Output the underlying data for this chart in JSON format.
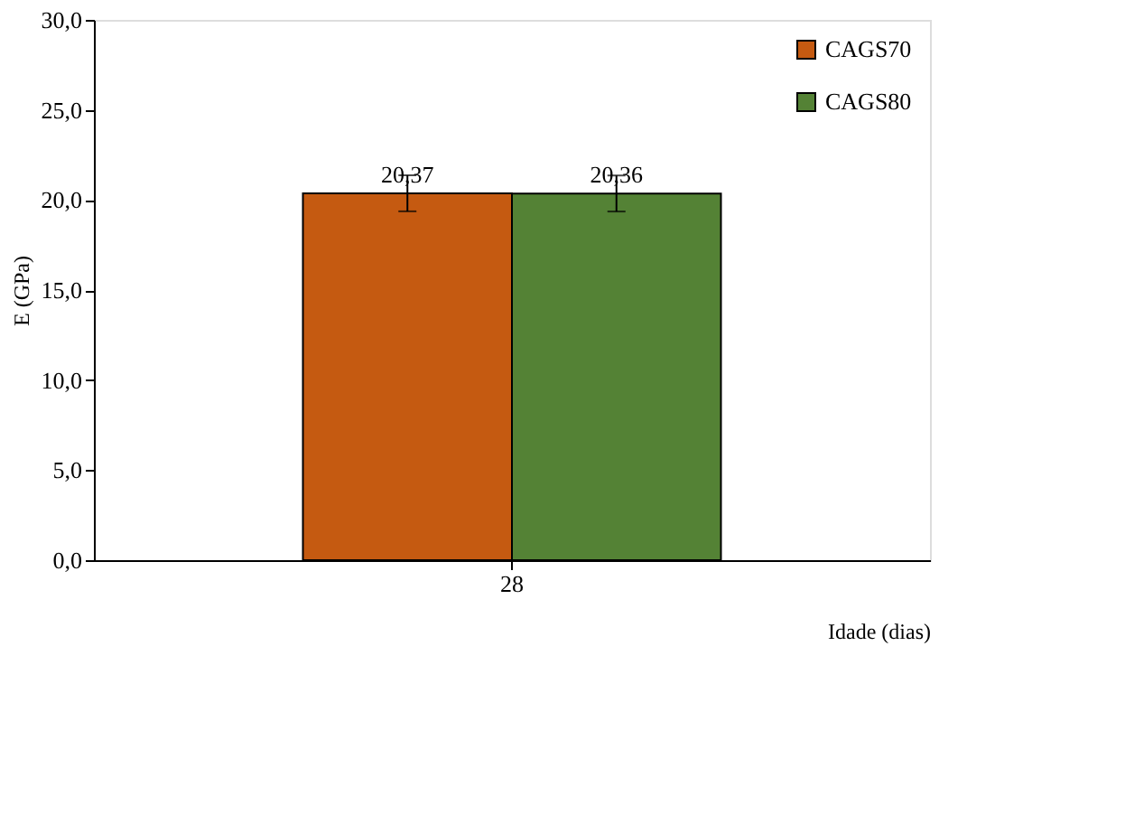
{
  "chart_data": {
    "type": "bar",
    "xlabel": "Idade (dias)",
    "ylabel": "E (GPa)",
    "categories": [
      "28"
    ],
    "series": [
      {
        "name": "CAGS70",
        "color": "#c55a11",
        "values": [
          20.37
        ],
        "errors": [
          1.0
        ],
        "value_labels": [
          "20,37"
        ]
      },
      {
        "name": "CAGS80",
        "color": "#548235",
        "values": [
          20.36
        ],
        "errors": [
          1.0
        ],
        "value_labels": [
          "20,36"
        ]
      }
    ],
    "ylim": [
      0,
      30
    ],
    "yticks": [
      {
        "value": 0,
        "label": "0,0"
      },
      {
        "value": 5,
        "label": "5,0"
      },
      {
        "value": 10,
        "label": "10,0"
      },
      {
        "value": 15,
        "label": "15,0"
      },
      {
        "value": 20,
        "label": "20,0"
      },
      {
        "value": 25,
        "label": "25,0"
      },
      {
        "value": 30,
        "label": "30,0"
      }
    ],
    "grid": false,
    "legend": "top right"
  }
}
